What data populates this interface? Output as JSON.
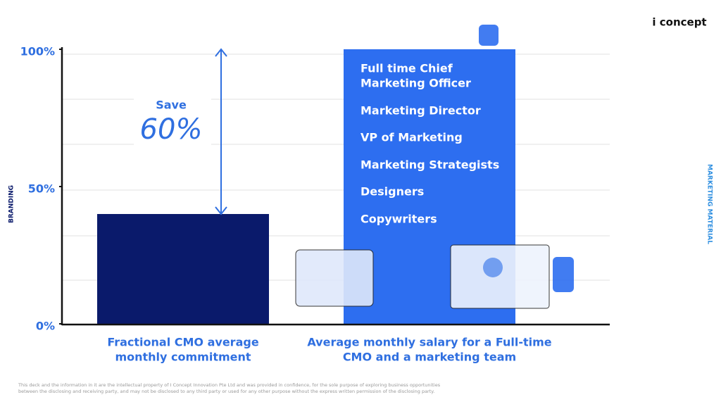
{
  "brand": "i concept",
  "left_tab": "BRANDING",
  "right_tab": "MARKETING MATERIAL",
  "footer": [
    "This deck and the information in it are the intellectual property of I Concept Innovation Pte Ltd and was provided in confidence, for the sole purpose of exploring business opportunities",
    "between the disclosing and receiving party, and may not be disclosed to any third party or used for any other purpose without the express written permission of the disclosing party."
  ],
  "chart_data": {
    "type": "bar",
    "categories": [
      [
        "Fractional CMO average",
        "monthly commitment"
      ],
      [
        "Average monthly salary for a Full-time",
        "CMO and a marketing team"
      ]
    ],
    "values": [
      40,
      100
    ],
    "colors": [
      "#0a1a6b",
      "#2d6ef0"
    ],
    "ylim": [
      0,
      100
    ],
    "yticks": [
      {
        "value": 0,
        "label": "0%"
      },
      {
        "value": 50,
        "label": "50%"
      },
      {
        "value": 100,
        "label": "100%"
      }
    ],
    "annotation": {
      "text": "Save",
      "value_label": "60%"
    },
    "bar_items": [
      "Full time Chief",
      "Marketing Officer",
      "Marketing Director",
      "VP of Marketing",
      "Marketing Strategists",
      "Designers",
      "Copywriters"
    ]
  }
}
